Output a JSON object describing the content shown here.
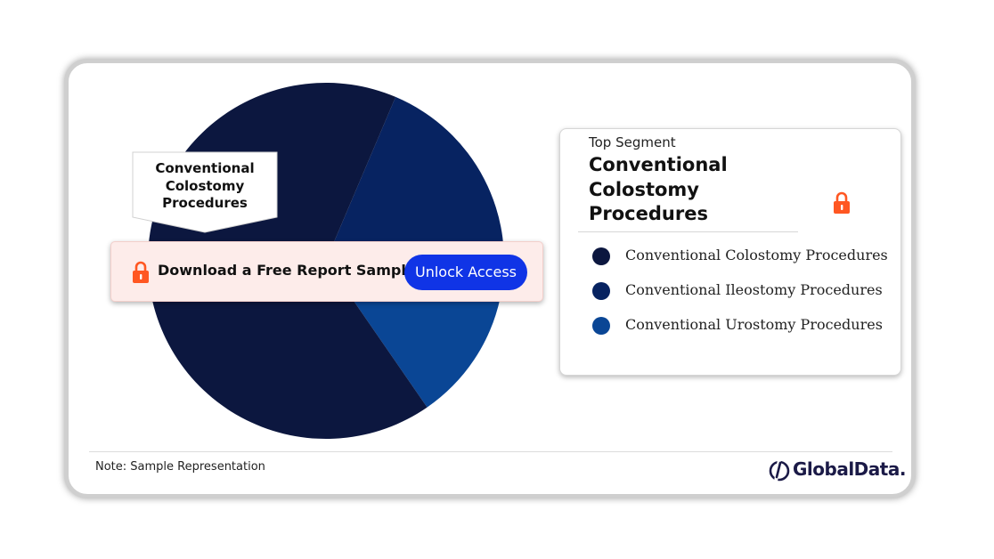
{
  "chart_data": {
    "type": "pie",
    "categories": [
      "Conventional Colostomy Procedures",
      "Conventional Ileostomy Procedures",
      "Conventional Urostomy Procedures"
    ],
    "values": [
      66,
      22,
      12
    ],
    "colors": [
      "#0c173f",
      "#072361",
      "#0a4695"
    ],
    "callout": "Conventional Colostomy Procedures"
  },
  "banner": {
    "text": "Download a Free Report Sample",
    "button_label": "Unlock Access",
    "icon": "lock-icon",
    "icon_color": "#ff5722"
  },
  "legend": {
    "top_segment_label": "Top Segment",
    "top_segment_value": "Conventional Colostomy Procedures",
    "icon": "lock-icon",
    "items": [
      {
        "label": "Conventional Colostomy Procedures",
        "color": "#0c173f"
      },
      {
        "label": "Conventional Ileostomy Procedures",
        "color": "#072361"
      },
      {
        "label": "Conventional Urostomy Procedures",
        "color": "#0a4695"
      }
    ]
  },
  "footer": {
    "note": "Note: Sample Representation",
    "brand": "GlobalData.",
    "brand_icon": "globaldata-logo-icon"
  }
}
